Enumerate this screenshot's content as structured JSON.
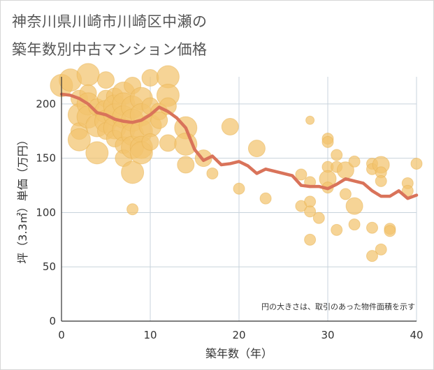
{
  "title_line1": "神奈川県川崎市川崎区中瀬の",
  "title_line2": "築年数別中古マンション価格",
  "colors": {
    "bubble": "#f2c46e",
    "bubble_stroke": "#e8b24f",
    "line": "#d9735a",
    "grid": "#c8d3dc",
    "axis": "#333333"
  },
  "chart_data": {
    "type": "scatter",
    "xlabel": "築年数（年）",
    "ylabel": "坪（3.3㎡）単価（万円）",
    "xlim": [
      0,
      40
    ],
    "ylim": [
      0,
      225
    ],
    "x_ticks": [
      0,
      10,
      20,
      30,
      40
    ],
    "y_ticks": [
      0,
      50,
      100,
      150,
      200
    ],
    "grid": true,
    "note": "円の大きさは、取引のあった物件面積を示す",
    "bubbles": [
      {
        "x": 0,
        "y": 217,
        "s": 3
      },
      {
        "x": 1,
        "y": 222,
        "s": 3
      },
      {
        "x": 2,
        "y": 205,
        "s": 2
      },
      {
        "x": 2,
        "y": 190,
        "s": 3
      },
      {
        "x": 2,
        "y": 175,
        "s": 2
      },
      {
        "x": 2,
        "y": 167,
        "s": 3
      },
      {
        "x": 3,
        "y": 227,
        "s": 3
      },
      {
        "x": 3,
        "y": 210,
        "s": 2
      },
      {
        "x": 3,
        "y": 200,
        "s": 3
      },
      {
        "x": 3,
        "y": 188,
        "s": 3
      },
      {
        "x": 4,
        "y": 197,
        "s": 2
      },
      {
        "x": 4,
        "y": 180,
        "s": 3
      },
      {
        "x": 4,
        "y": 155,
        "s": 3
      },
      {
        "x": 5,
        "y": 222,
        "s": 2
      },
      {
        "x": 5,
        "y": 205,
        "s": 2
      },
      {
        "x": 5,
        "y": 193,
        "s": 3
      },
      {
        "x": 5,
        "y": 184,
        "s": 3
      },
      {
        "x": 5,
        "y": 175,
        "s": 2
      },
      {
        "x": 6,
        "y": 207,
        "s": 2
      },
      {
        "x": 6,
        "y": 198,
        "s": 3
      },
      {
        "x": 6,
        "y": 190,
        "s": 3
      },
      {
        "x": 6,
        "y": 178,
        "s": 3
      },
      {
        "x": 6,
        "y": 168,
        "s": 2
      },
      {
        "x": 7,
        "y": 210,
        "s": 3
      },
      {
        "x": 7,
        "y": 200,
        "s": 3
      },
      {
        "x": 7,
        "y": 188,
        "s": 3
      },
      {
        "x": 7,
        "y": 176,
        "s": 3
      },
      {
        "x": 7,
        "y": 162,
        "s": 2
      },
      {
        "x": 7,
        "y": 150,
        "s": 2
      },
      {
        "x": 8,
        "y": 217,
        "s": 2
      },
      {
        "x": 8,
        "y": 197,
        "s": 3
      },
      {
        "x": 8,
        "y": 185,
        "s": 3
      },
      {
        "x": 8,
        "y": 172,
        "s": 3
      },
      {
        "x": 8,
        "y": 160,
        "s": 3
      },
      {
        "x": 8,
        "y": 137,
        "s": 3
      },
      {
        "x": 8,
        "y": 103,
        "s": 1
      },
      {
        "x": 9,
        "y": 205,
        "s": 3
      },
      {
        "x": 9,
        "y": 190,
        "s": 3
      },
      {
        "x": 9,
        "y": 175,
        "s": 3
      },
      {
        "x": 9,
        "y": 160,
        "s": 3
      },
      {
        "x": 9,
        "y": 155,
        "s": 3
      },
      {
        "x": 10,
        "y": 224,
        "s": 2
      },
      {
        "x": 10,
        "y": 198,
        "s": 2
      },
      {
        "x": 10,
        "y": 180,
        "s": 3
      },
      {
        "x": 10,
        "y": 165,
        "s": 2
      },
      {
        "x": 11,
        "y": 193,
        "s": 2
      },
      {
        "x": 11,
        "y": 185,
        "s": 2
      },
      {
        "x": 12,
        "y": 225,
        "s": 3
      },
      {
        "x": 12,
        "y": 208,
        "s": 3
      },
      {
        "x": 12,
        "y": 198,
        "s": 2
      },
      {
        "x": 12,
        "y": 164,
        "s": 2
      },
      {
        "x": 14,
        "y": 178,
        "s": 3
      },
      {
        "x": 14,
        "y": 163,
        "s": 3
      },
      {
        "x": 14,
        "y": 144,
        "s": 2
      },
      {
        "x": 16,
        "y": 150,
        "s": 2
      },
      {
        "x": 17,
        "y": 136,
        "s": 1
      },
      {
        "x": 19,
        "y": 179,
        "s": 2
      },
      {
        "x": 20,
        "y": 122,
        "s": 1
      },
      {
        "x": 22,
        "y": 159,
        "s": 2
      },
      {
        "x": 23,
        "y": 113,
        "s": 1
      },
      {
        "x": 27,
        "y": 135,
        "s": 1
      },
      {
        "x": 27,
        "y": 106,
        "s": 1
      },
      {
        "x": 28,
        "y": 185,
        "s": 0.5
      },
      {
        "x": 28,
        "y": 128,
        "s": 1
      },
      {
        "x": 28,
        "y": 110,
        "s": 1
      },
      {
        "x": 28,
        "y": 101,
        "s": 1
      },
      {
        "x": 28,
        "y": 75,
        "s": 1
      },
      {
        "x": 29,
        "y": 95,
        "s": 1
      },
      {
        "x": 30,
        "y": 168,
        "s": 1
      },
      {
        "x": 30,
        "y": 165,
        "s": 1
      },
      {
        "x": 30,
        "y": 142,
        "s": 1
      },
      {
        "x": 30,
        "y": 131,
        "s": 2
      },
      {
        "x": 30,
        "y": 123,
        "s": 1
      },
      {
        "x": 31,
        "y": 153,
        "s": 1
      },
      {
        "x": 31,
        "y": 142,
        "s": 1
      },
      {
        "x": 31,
        "y": 84,
        "s": 1
      },
      {
        "x": 32,
        "y": 139,
        "s": 2
      },
      {
        "x": 32,
        "y": 117,
        "s": 1
      },
      {
        "x": 33,
        "y": 147,
        "s": 1
      },
      {
        "x": 33,
        "y": 106,
        "s": 2
      },
      {
        "x": 33,
        "y": 89,
        "s": 1
      },
      {
        "x": 35,
        "y": 145,
        "s": 1
      },
      {
        "x": 35,
        "y": 140,
        "s": 1
      },
      {
        "x": 35,
        "y": 86,
        "s": 1
      },
      {
        "x": 35,
        "y": 60,
        "s": 1
      },
      {
        "x": 36,
        "y": 144,
        "s": 2
      },
      {
        "x": 36,
        "y": 137,
        "s": 1
      },
      {
        "x": 36,
        "y": 129,
        "s": 1
      },
      {
        "x": 36,
        "y": 66,
        "s": 1
      },
      {
        "x": 37,
        "y": 85,
        "s": 1
      },
      {
        "x": 37,
        "y": 83,
        "s": 1
      },
      {
        "x": 39,
        "y": 127,
        "s": 1
      },
      {
        "x": 39,
        "y": 120,
        "s": 1
      },
      {
        "x": 40,
        "y": 145,
        "s": 1
      }
    ],
    "series": [
      {
        "values_x": [
          0,
          1,
          2,
          3,
          4,
          5,
          6,
          7,
          8,
          9,
          10,
          11,
          12,
          13,
          14,
          15,
          16,
          17,
          18,
          19,
          20,
          21,
          22,
          23,
          24,
          25,
          26,
          27,
          28,
          29,
          30,
          31,
          32,
          33,
          34,
          35,
          36,
          37,
          38,
          39,
          40
        ],
        "values_y": [
          209,
          208,
          205,
          200,
          192,
          190,
          186,
          184,
          183,
          185,
          190,
          197,
          193,
          187,
          178,
          158,
          148,
          152,
          144,
          145,
          147,
          143,
          136,
          140,
          138,
          136,
          134,
          125,
          124,
          124,
          122,
          126,
          131,
          129,
          127,
          120,
          115,
          115,
          120,
          113,
          116
        ]
      }
    ]
  }
}
